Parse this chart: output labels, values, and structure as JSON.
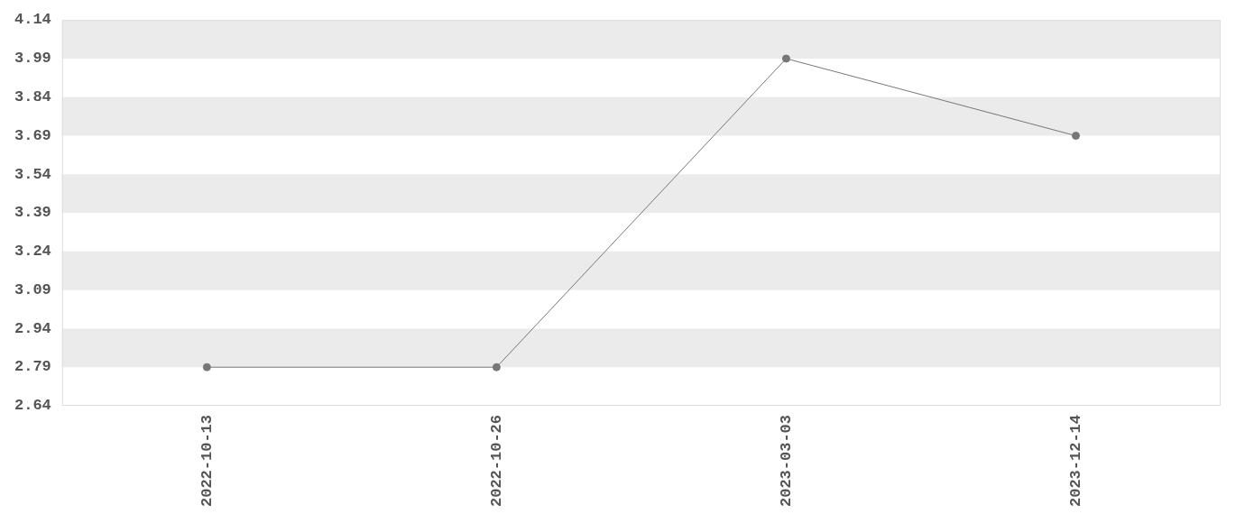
{
  "chart_data": {
    "type": "line",
    "categories": [
      "2022-10-13",
      "2022-10-26",
      "2023-03-03",
      "2023-12-14"
    ],
    "series": [
      {
        "color": "#777777",
        "values": [
          2.79,
          2.79,
          3.99,
          3.69
        ]
      }
    ],
    "ylim": [
      2.64,
      4.14
    ],
    "yticks": [
      2.64,
      2.79,
      2.94,
      3.09,
      3.24,
      3.39,
      3.54,
      3.69,
      3.84,
      3.99,
      4.14
    ],
    "bands": [
      {
        "axis": "y",
        "from": 2.79,
        "to": 2.94,
        "color": "#ebebeb"
      },
      {
        "axis": "y",
        "from": 3.09,
        "to": 3.24,
        "color": "#ebebeb"
      },
      {
        "axis": "y",
        "from": 3.39,
        "to": 3.54,
        "color": "#ebebeb"
      },
      {
        "axis": "y",
        "from": 3.69,
        "to": 3.84,
        "color": "#ebebeb"
      },
      {
        "axis": "y",
        "from": 3.99,
        "to": 4.14,
        "color": "#ebebeb"
      }
    ],
    "legend": false,
    "marker": "circle",
    "line_style": "solid"
  }
}
